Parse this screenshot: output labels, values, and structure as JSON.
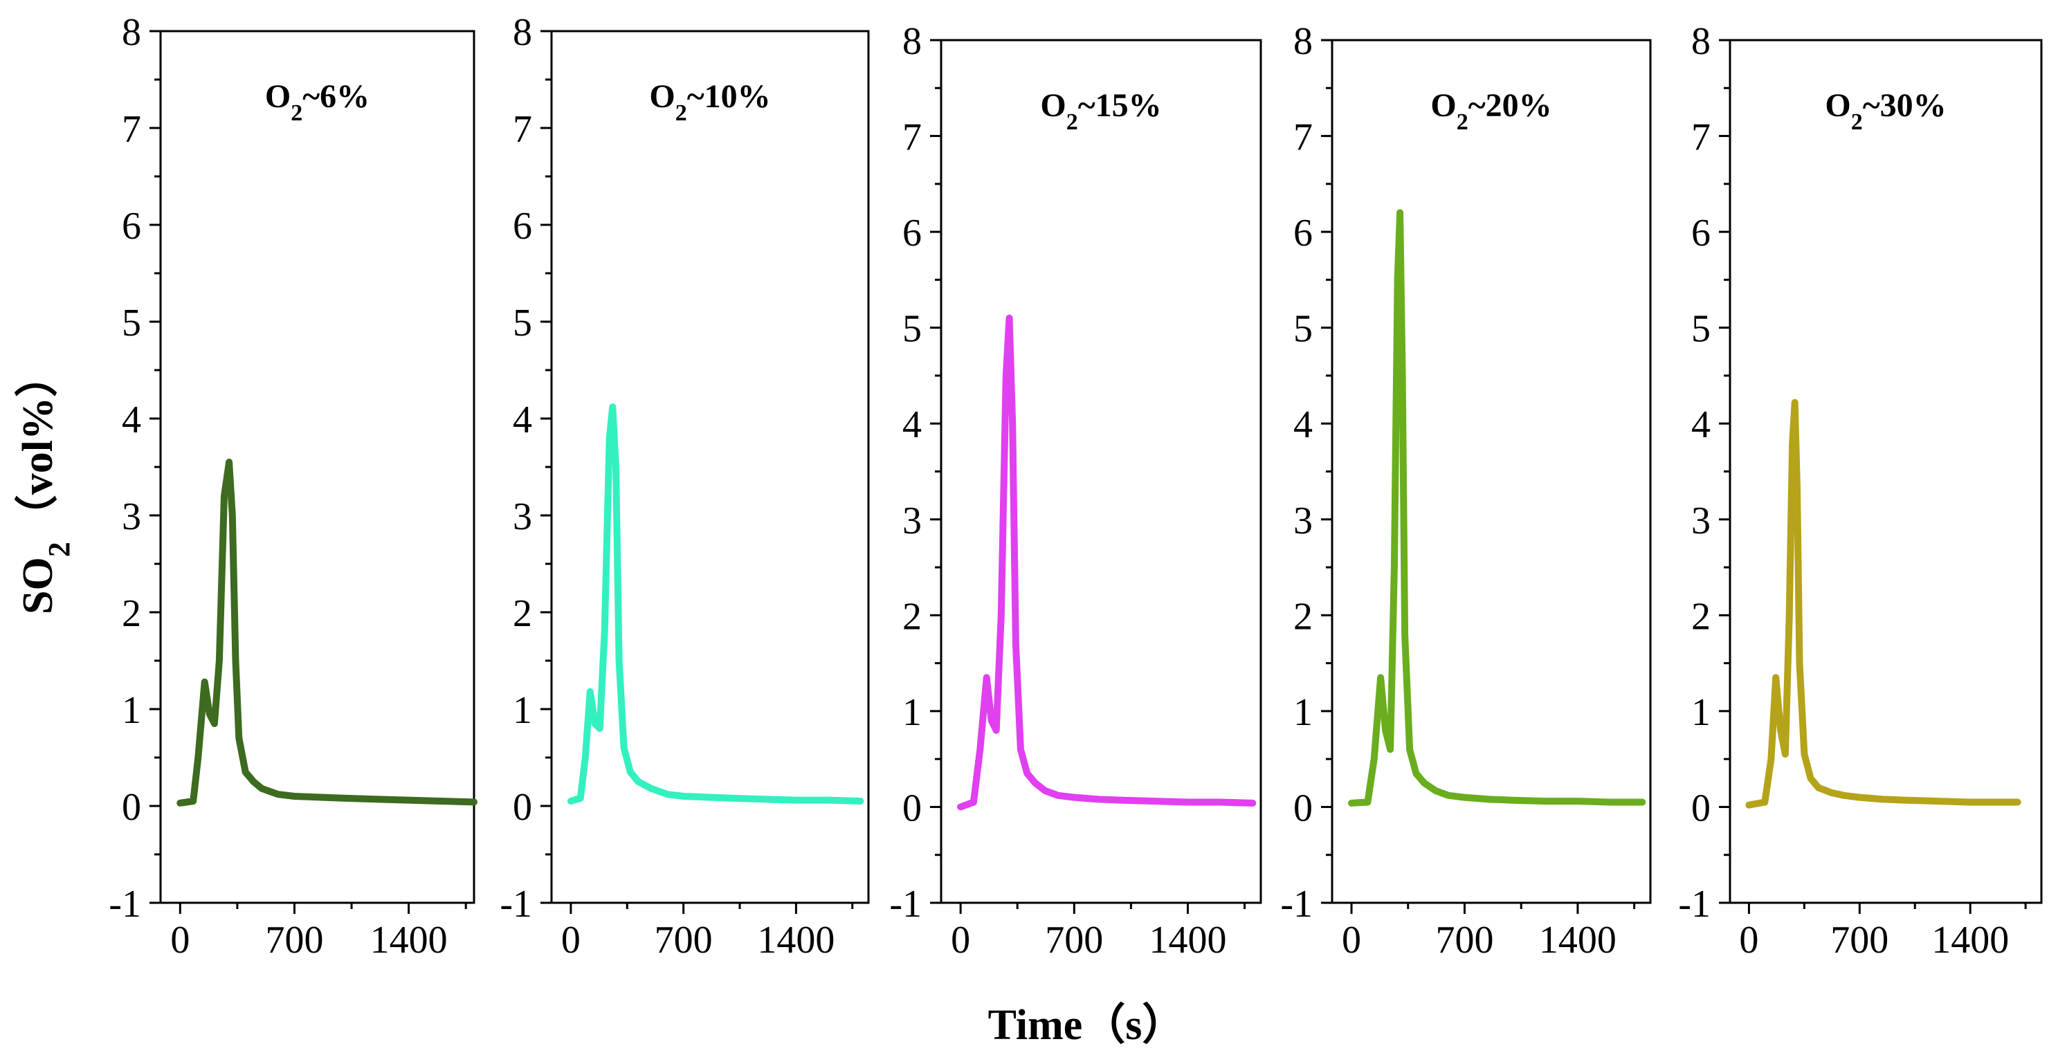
{
  "figure": {
    "ylabel": "SO",
    "ylabel_sub": "2",
    "ylabel_unit": "（vol%）",
    "xlabel": "Time（s）"
  },
  "chart_data": [
    {
      "type": "line",
      "title": "O2~6%",
      "title_parts": {
        "main": "O",
        "sub": "2",
        "rest": "~6%"
      },
      "color": "#3d6b1f",
      "xlim": [
        -120,
        1800
      ],
      "ylim": [
        -1,
        8
      ],
      "xticks": [
        0,
        700,
        1400
      ],
      "xtick_labels": [
        "0",
        "700",
        "1400"
      ],
      "yticks": [
        -1,
        0,
        1,
        2,
        3,
        4,
        5,
        6,
        7,
        8
      ],
      "ytick_labels": [
        "-1",
        "0",
        "1",
        "2",
        "3",
        "4",
        "5",
        "6",
        "7",
        "8"
      ],
      "series": [
        {
          "x": [
            0,
            80,
            110,
            150,
            180,
            210,
            240,
            270,
            300,
            320,
            340,
            360,
            400,
            450,
            500,
            600,
            700,
            850,
            1000,
            1200,
            1400,
            1600,
            1800
          ],
          "y": [
            0.03,
            0.05,
            0.5,
            1.28,
            0.95,
            0.85,
            1.5,
            3.2,
            3.55,
            3.0,
            1.5,
            0.7,
            0.35,
            0.25,
            0.18,
            0.12,
            0.1,
            0.09,
            0.08,
            0.07,
            0.06,
            0.05,
            0.04
          ]
        }
      ]
    },
    {
      "type": "line",
      "title": "O2~10%",
      "title_parts": {
        "main": "O",
        "sub": "2",
        "rest": "~10%"
      },
      "color": "#33f0bf",
      "xlim": [
        -120,
        1850
      ],
      "ylim": [
        -1,
        8
      ],
      "xticks": [
        0,
        700,
        1400
      ],
      "xtick_labels": [
        "0",
        "700",
        "1400"
      ],
      "yticks": [
        -1,
        0,
        1,
        2,
        3,
        4,
        5,
        6,
        7,
        8
      ],
      "ytick_labels": [
        "-1",
        "0",
        "1",
        "2",
        "3",
        "4",
        "5",
        "6",
        "7",
        "8"
      ],
      "series": [
        {
          "x": [
            0,
            60,
            90,
            120,
            150,
            180,
            210,
            240,
            260,
            280,
            300,
            330,
            370,
            420,
            500,
            600,
            700,
            850,
            1000,
            1200,
            1400,
            1600,
            1800
          ],
          "y": [
            0.05,
            0.08,
            0.5,
            1.18,
            0.85,
            0.8,
            1.8,
            3.8,
            4.12,
            3.5,
            1.5,
            0.6,
            0.35,
            0.25,
            0.18,
            0.12,
            0.1,
            0.09,
            0.08,
            0.07,
            0.06,
            0.06,
            0.05
          ]
        }
      ]
    },
    {
      "type": "line",
      "title": "O2~15%",
      "title_parts": {
        "main": "O",
        "sub": "2",
        "rest": "~15%"
      },
      "color": "#e040f0",
      "xlim": [
        -120,
        1850
      ],
      "ylim": [
        -1,
        8
      ],
      "xticks": [
        0,
        700,
        1400
      ],
      "xtick_labels": [
        "0",
        "700",
        "1400"
      ],
      "yticks": [
        -1,
        0,
        1,
        2,
        3,
        4,
        5,
        6,
        7,
        8
      ],
      "ytick_labels": [
        "-1",
        "0",
        "1",
        "2",
        "3",
        "4",
        "5",
        "6",
        "7",
        "8"
      ],
      "series": [
        {
          "x": [
            0,
            80,
            120,
            160,
            190,
            220,
            250,
            280,
            300,
            320,
            340,
            370,
            410,
            460,
            520,
            600,
            700,
            850,
            1000,
            1200,
            1400,
            1600,
            1800
          ],
          "y": [
            0.0,
            0.05,
            0.6,
            1.35,
            0.9,
            0.8,
            2.0,
            4.5,
            5.1,
            4.0,
            1.7,
            0.6,
            0.35,
            0.25,
            0.17,
            0.12,
            0.1,
            0.08,
            0.07,
            0.06,
            0.05,
            0.05,
            0.04
          ]
        }
      ]
    },
    {
      "type": "line",
      "title": "O2~20%",
      "title_parts": {
        "main": "O",
        "sub": "2",
        "rest": "~20%"
      },
      "color": "#6aad1e",
      "xlim": [
        -120,
        1850
      ],
      "ylim": [
        -1,
        8
      ],
      "xticks": [
        0,
        700,
        1400
      ],
      "xtick_labels": [
        "0",
        "700",
        "1400"
      ],
      "yticks": [
        -1,
        0,
        1,
        2,
        3,
        4,
        5,
        6,
        7,
        8
      ],
      "ytick_labels": [
        "-1",
        "0",
        "1",
        "2",
        "3",
        "4",
        "5",
        "6",
        "7",
        "8"
      ],
      "series": [
        {
          "x": [
            0,
            100,
            140,
            180,
            210,
            240,
            265,
            285,
            300,
            315,
            330,
            360,
            400,
            450,
            520,
            600,
            700,
            850,
            1000,
            1200,
            1400,
            1600,
            1800
          ],
          "y": [
            0.04,
            0.05,
            0.5,
            1.35,
            0.8,
            0.6,
            2.5,
            5.5,
            6.2,
            4.5,
            1.8,
            0.6,
            0.35,
            0.25,
            0.17,
            0.12,
            0.1,
            0.08,
            0.07,
            0.06,
            0.06,
            0.05,
            0.05
          ]
        }
      ]
    },
    {
      "type": "line",
      "title": "O2~30%",
      "title_parts": {
        "main": "O",
        "sub": "2",
        "rest": "~30%"
      },
      "color": "#b5a31a",
      "xlim": [
        -120,
        1850
      ],
      "ylim": [
        -1,
        8
      ],
      "xticks": [
        0,
        700,
        1400
      ],
      "xtick_labels": [
        "0",
        "700",
        "1400"
      ],
      "yticks": [
        -1,
        0,
        1,
        2,
        3,
        4,
        5,
        6,
        7,
        8
      ],
      "ytick_labels": [
        "-1",
        "0",
        "1",
        "2",
        "3",
        "4",
        "5",
        "6",
        "7",
        "8"
      ],
      "series": [
        {
          "x": [
            0,
            100,
            140,
            170,
            200,
            230,
            255,
            275,
            290,
            305,
            320,
            350,
            390,
            440,
            520,
            600,
            700,
            850,
            1000,
            1200,
            1400,
            1600,
            1700
          ],
          "y": [
            0.02,
            0.05,
            0.5,
            1.35,
            0.8,
            0.55,
            2.0,
            3.8,
            4.22,
            3.3,
            1.5,
            0.55,
            0.3,
            0.2,
            0.15,
            0.12,
            0.1,
            0.08,
            0.07,
            0.06,
            0.05,
            0.05,
            0.05
          ]
        }
      ]
    }
  ]
}
